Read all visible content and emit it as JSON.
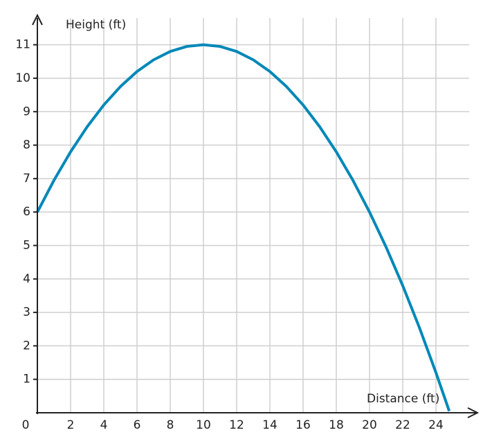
{
  "chart_data": {
    "type": "line",
    "x_label": "Distance (ft)",
    "y_label": "Height (ft)",
    "x": [
      0,
      1,
      2,
      3,
      4,
      5,
      6,
      7,
      8,
      9,
      10,
      11,
      12,
      13,
      14,
      15,
      16,
      17,
      18,
      19,
      20,
      21,
      22,
      23,
      24,
      24.8
    ],
    "series": [
      {
        "color": "#0088b8",
        "values": [
          6,
          6.95,
          7.8,
          8.55,
          9.2,
          9.75,
          10.2,
          10.55,
          10.8,
          10.95,
          11,
          10.95,
          10.8,
          10.55,
          10.2,
          9.75,
          9.2,
          8.55,
          7.8,
          6.95,
          6,
          4.95,
          3.8,
          2.55,
          1.2,
          0.05
        ]
      }
    ],
    "xlim": [
      0,
      26
    ],
    "ylim": [
      0,
      11.8
    ],
    "xticks": [
      0,
      2,
      4,
      6,
      8,
      10,
      12,
      14,
      16,
      18,
      20,
      22,
      24
    ],
    "yticks": [
      1,
      2,
      3,
      4,
      5,
      6,
      7,
      8,
      9,
      10,
      11
    ],
    "grid": true
  }
}
